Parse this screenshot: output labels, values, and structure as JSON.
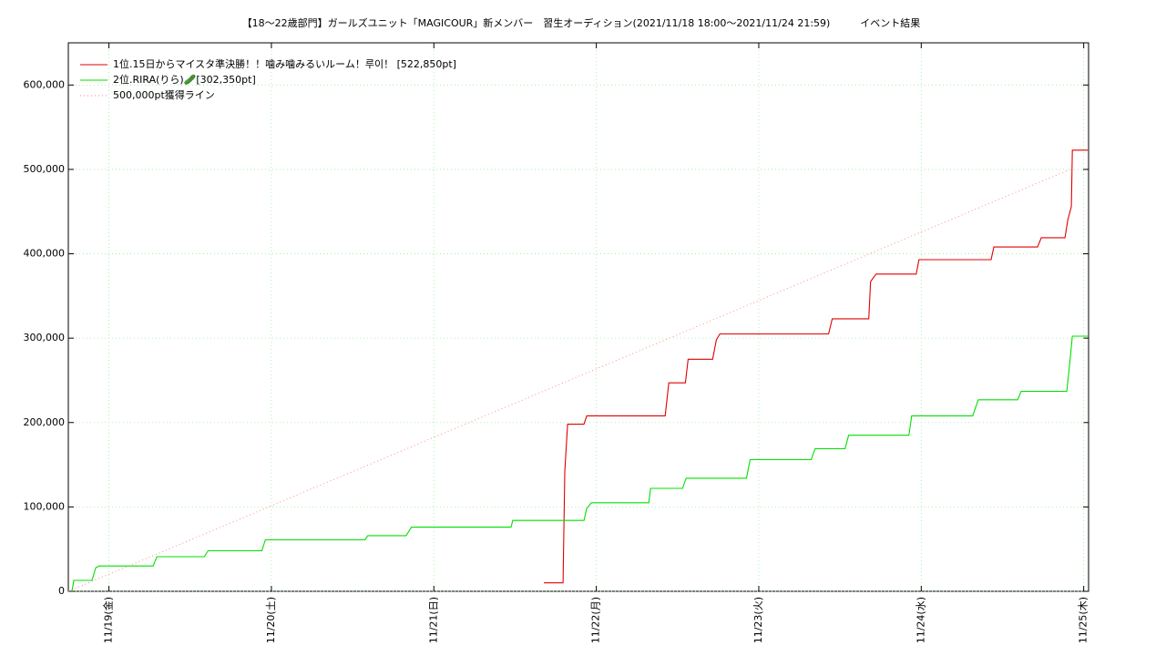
{
  "chart_data": {
    "type": "line",
    "title": "【18〜22歳部門】ガールズユニット「MAGICOUR」新メンバー　習生オーディション(2021/11/18 18:00〜2021/11/24 21:59)　　　イベント結果",
    "xlim": [
      18.75,
      25.03
    ],
    "xticks": [
      {
        "value": 19,
        "label": "11/19(金)"
      },
      {
        "value": 20,
        "label": "11/20(土)"
      },
      {
        "value": 21,
        "label": "11/21(日)"
      },
      {
        "value": 22,
        "label": "11/22(月)"
      },
      {
        "value": 23,
        "label": "11/23(火)"
      },
      {
        "value": 24,
        "label": "11/24(水)"
      },
      {
        "value": 25,
        "label": "11/25(木)"
      }
    ],
    "ylim": [
      0,
      650000
    ],
    "yticks": [
      0,
      {
        "value": 100000,
        "label": "100,000"
      },
      {
        "value": 200000,
        "label": "200,000"
      },
      {
        "value": 300000,
        "label": "300,000"
      },
      {
        "value": 400000,
        "label": "400,000"
      },
      {
        "value": 500000,
        "label": "500,000"
      },
      {
        "value": 600000,
        "label": "600,000"
      }
    ],
    "grid": true,
    "legend": "upper left",
    "series": [
      {
        "name": "1位.15日からマイスタ準決勝！！噛み噛みるいルーム！루이！ [522,850pt]",
        "color": "#e00000",
        "dash": "solid",
        "x": [
          21.677,
          21.795,
          21.806,
          21.823,
          21.924,
          21.941,
          22.424,
          22.446,
          22.548,
          22.565,
          22.716,
          22.739,
          22.761,
          23.43,
          23.452,
          23.677,
          23.688,
          23.722,
          23.969,
          23.986,
          24.43,
          24.447,
          24.716,
          24.739,
          24.885,
          24.902,
          24.924,
          24.93,
          25.025
        ],
        "values": [
          10000,
          10000,
          142000,
          198000,
          198000,
          208000,
          208000,
          247000,
          247000,
          275000,
          275000,
          298000,
          305000,
          305000,
          323000,
          323000,
          367000,
          376000,
          376000,
          393000,
          393000,
          408000,
          408000,
          419000,
          419000,
          440000,
          456000,
          522850,
          522850
        ]
      },
      {
        "name": "2位.RIRA(りら)🥒[302,350pt]",
        "color": "#00e000",
        "dash": "solid",
        "x": [
          18.772,
          18.784,
          18.896,
          18.919,
          18.941,
          19.272,
          19.295,
          19.587,
          19.61,
          19.941,
          19.963,
          20.576,
          20.593,
          20.829,
          20.862,
          21.475,
          21.486,
          21.924,
          21.941,
          21.969,
          22.323,
          22.334,
          22.531,
          22.553,
          22.924,
          22.947,
          23.323,
          23.346,
          23.531,
          23.553,
          23.924,
          23.941,
          24.317,
          24.351,
          24.593,
          24.615,
          24.896,
          24.913,
          24.93,
          25.025
        ],
        "values": [
          0,
          13000,
          13000,
          28000,
          30000,
          30000,
          41000,
          41000,
          48000,
          48000,
          61000,
          61000,
          66000,
          66000,
          76000,
          76000,
          84000,
          84000,
          98000,
          105000,
          105000,
          122000,
          122000,
          134000,
          134000,
          156000,
          156000,
          169000,
          169000,
          185000,
          185000,
          208000,
          208000,
          227000,
          227000,
          237000,
          237000,
          268000,
          302350,
          302350
        ]
      },
      {
        "name": "500,000pt獲得ライン",
        "color": "#ff8080",
        "dash": "dotted",
        "x": [
          18.75,
          24.916
        ],
        "values": [
          0,
          500000
        ]
      }
    ]
  }
}
